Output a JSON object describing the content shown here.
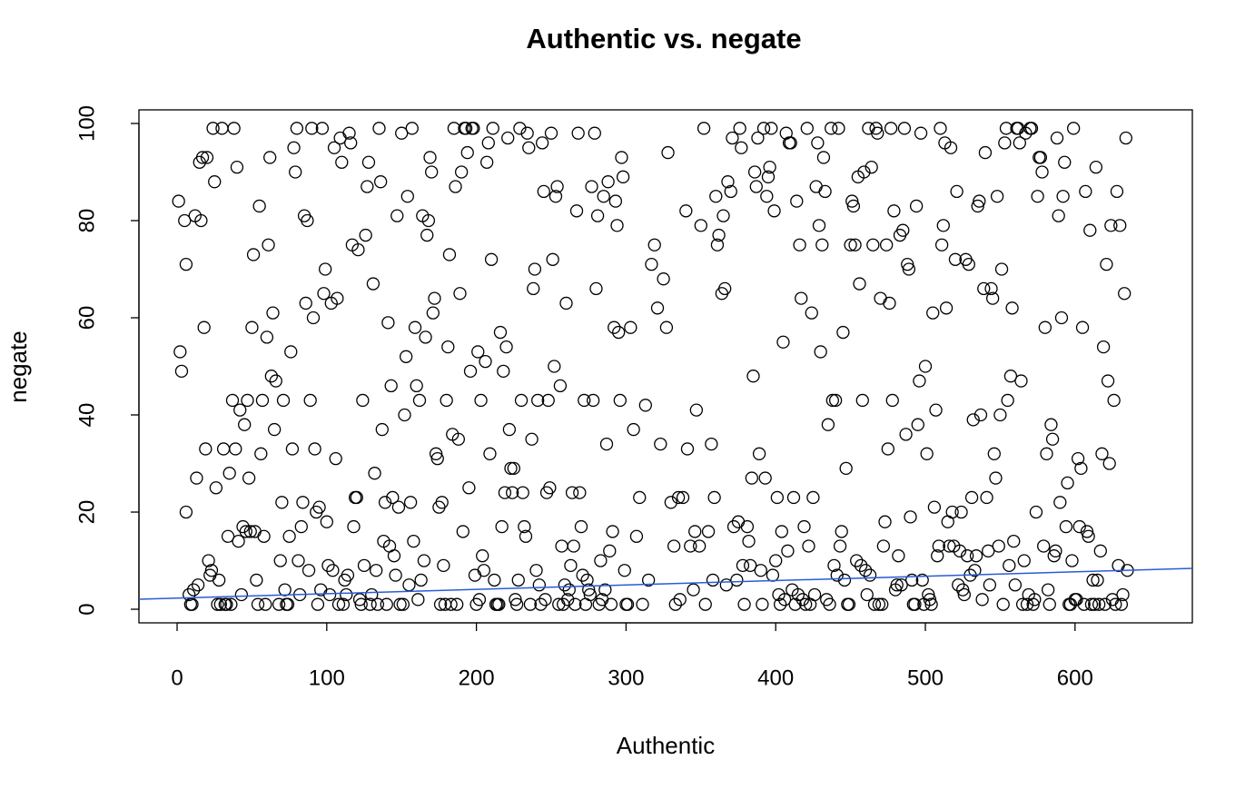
{
  "chart_data": {
    "type": "scatter",
    "title": "Authentic vs. negate",
    "x_label": "Authentic",
    "y_label": "negate",
    "xlim": [
      -25.5,
      678.4
    ],
    "ylim": [
      -2.8,
      102.8
    ],
    "xticks": [
      0,
      100,
      200,
      300,
      400,
      500,
      600
    ],
    "yticks": [
      0,
      20,
      40,
      60,
      80,
      100
    ],
    "color": "#000000",
    "x": [
      1,
      2,
      3,
      5,
      6,
      6,
      8,
      9,
      10,
      11,
      12,
      13,
      14,
      15,
      16,
      17,
      18,
      19,
      20,
      21,
      22,
      23,
      24,
      25,
      26,
      27,
      28,
      29,
      30,
      31,
      32,
      33,
      34,
      35,
      36,
      37,
      38,
      39,
      40,
      41,
      42,
      43,
      44,
      45,
      46,
      47,
      48,
      49,
      50,
      51,
      52,
      53,
      54,
      55,
      56,
      57,
      58,
      59,
      60,
      61,
      62,
      63,
      64,
      65,
      66,
      68,
      69,
      70,
      71,
      72,
      73,
      74,
      75,
      76,
      77,
      78,
      79,
      80,
      81,
      82,
      83,
      84,
      85,
      86,
      87,
      88,
      89,
      90,
      91,
      92,
      93,
      94,
      95,
      96,
      97,
      98,
      99,
      100,
      101,
      102,
      103,
      104,
      105,
      106,
      107,
      108,
      109,
      110,
      111,
      112,
      113,
      114,
      115,
      116,
      117,
      118,
      119,
      120,
      121,
      122,
      123,
      124,
      125,
      126,
      127,
      128,
      129,
      130,
      131,
      132,
      133,
      134,
      135,
      136,
      137,
      138,
      139,
      140,
      141,
      142,
      143,
      144,
      145,
      146,
      147,
      148,
      149,
      150,
      151,
      152,
      153,
      154,
      155,
      156,
      157,
      158,
      159,
      160,
      161,
      162,
      163,
      164,
      165,
      166,
      167,
      168,
      169,
      170,
      171,
      172,
      173,
      174,
      175,
      176,
      177,
      178,
      179,
      180,
      181,
      182,
      183,
      184,
      185,
      186,
      187,
      188,
      189,
      190,
      191,
      192,
      193,
      194,
      195,
      196,
      197,
      198,
      199,
      200,
      201,
      202,
      203,
      204,
      205,
      206,
      207,
      208,
      209,
      210,
      211,
      212,
      213,
      214,
      215,
      216,
      217,
      218,
      219,
      220,
      221,
      222,
      223,
      224,
      225,
      226,
      227,
      228,
      229,
      230,
      231,
      232,
      233,
      234,
      235,
      236,
      237,
      238,
      239,
      240,
      241,
      242,
      243,
      244,
      245,
      246,
      247,
      248,
      249,
      250,
      251,
      252,
      253,
      254,
      255,
      256,
      257,
      258,
      259,
      260,
      261,
      262,
      263,
      264,
      265,
      266,
      267,
      268,
      269,
      270,
      271,
      272,
      273,
      274,
      275,
      276,
      277,
      278,
      279,
      280,
      281,
      282,
      283,
      284,
      285,
      286,
      287,
      288,
      289,
      290,
      291,
      292,
      293,
      294,
      295,
      296,
      297,
      298,
      299,
      300,
      301,
      303,
      305,
      307,
      309,
      311,
      313,
      315,
      317,
      319,
      321,
      323,
      325,
      327,
      328,
      330,
      332,
      333,
      335,
      336,
      338,
      340,
      341,
      343,
      345,
      346,
      347,
      349,
      350,
      352,
      353,
      355,
      357,
      358,
      359,
      360,
      361,
      362,
      364,
      365,
      366,
      367,
      368,
      370,
      371,
      372,
      374,
      375,
      376,
      377,
      378,
      379,
      381,
      382,
      383,
      384,
      385,
      386,
      387,
      388,
      389,
      390,
      391,
      392,
      393,
      394,
      395,
      396,
      397,
      398,
      399,
      400,
      401,
      402,
      403,
      404,
      405,
      406,
      407,
      408,
      409,
      410,
      411,
      412,
      413,
      414,
      415,
      416,
      417,
      418,
      419,
      420,
      421,
      422,
      423,
      424,
      425,
      426,
      427,
      428,
      429,
      430,
      431,
      432,
      433,
      434,
      435,
      436,
      437,
      438,
      439,
      440,
      441,
      442,
      443,
      444,
      445,
      446,
      447,
      448,
      449,
      450,
      451,
      452,
      453,
      454,
      455,
      456,
      457,
      458,
      459,
      460,
      461,
      462,
      463,
      464,
      465,
      466,
      467,
      468,
      469,
      470,
      471,
      472,
      473,
      474,
      475,
      476,
      477,
      478,
      479,
      480,
      481,
      482,
      483,
      484,
      485,
      486,
      487,
      488,
      489,
      490,
      491,
      492,
      493,
      494,
      495,
      496,
      497,
      498,
      499,
      500,
      501,
      502,
      503,
      504,
      505,
      506,
      507,
      508,
      509,
      510,
      511,
      512,
      513,
      514,
      515,
      516,
      517,
      518,
      519,
      520,
      521,
      522,
      523,
      524,
      525,
      526,
      527,
      528,
      529,
      530,
      531,
      532,
      533,
      534,
      535,
      536,
      537,
      538,
      539,
      540,
      541,
      542,
      543,
      544,
      545,
      546,
      547,
      548,
      549,
      550,
      551,
      552,
      553,
      554,
      555,
      556,
      557,
      558,
      559,
      560,
      561,
      562,
      563,
      564,
      565,
      566,
      567,
      568,
      569,
      570,
      571,
      572,
      573,
      574,
      575,
      576,
      577,
      578,
      579,
      580,
      581,
      582,
      583,
      584,
      585,
      586,
      587,
      588,
      589,
      590,
      591,
      592,
      593,
      594,
      595,
      596,
      597,
      598,
      599,
      600,
      601,
      602,
      603,
      604,
      605,
      606,
      607,
      608,
      609,
      610,
      611,
      612,
      613,
      614,
      615,
      616,
      617,
      618,
      619,
      620,
      621,
      622,
      623,
      624,
      625,
      626,
      627,
      628,
      629,
      630,
      631,
      632,
      633,
      634,
      635
    ],
    "values": [
      84,
      53,
      49,
      80,
      71,
      20,
      3,
      1,
      1,
      4,
      81,
      27,
      5,
      92,
      80,
      93,
      58,
      33,
      93,
      10,
      7,
      8,
      99,
      88,
      25,
      1,
      6,
      1,
      99,
      33,
      1,
      1,
      15,
      28,
      1,
      43,
      99,
      33,
      91,
      14,
      41,
      3,
      17,
      38,
      16,
      43,
      27,
      16,
      58,
      73,
      16,
      6,
      1,
      83,
      32,
      43,
      15,
      1,
      56,
      75,
      93,
      48,
      61,
      37,
      47,
      1,
      10,
      22,
      43,
      4,
      1,
      1,
      15,
      53,
      33,
      95,
      90,
      99,
      10,
      3,
      17,
      22,
      81,
      63,
      80,
      8,
      43,
      99,
      60,
      33,
      20,
      1,
      21,
      4,
      99,
      65,
      70,
      18,
      9,
      3,
      63,
      8,
      95,
      31,
      64,
      1,
      97,
      92,
      1,
      6,
      3,
      7,
      98,
      96,
      75,
      17,
      23,
      23,
      74,
      2,
      1,
      43,
      9,
      77,
      87,
      92,
      1,
      3,
      67,
      28,
      8,
      1,
      99,
      88,
      37,
      14,
      22,
      1,
      59,
      13,
      46,
      23,
      11,
      7,
      81,
      21,
      1,
      98,
      1,
      40,
      52,
      85,
      5,
      22,
      99,
      14,
      58,
      46,
      2,
      43,
      6,
      81,
      10,
      56,
      77,
      80,
      93,
      90,
      61,
      64,
      32,
      31,
      21,
      1,
      22,
      9,
      1,
      43,
      54,
      73,
      1,
      36,
      99,
      87,
      1,
      35,
      65,
      90,
      16,
      99,
      99,
      94,
      25,
      49,
      99,
      99,
      7,
      1,
      53,
      2,
      43,
      11,
      8,
      51,
      92,
      96,
      32,
      72,
      99,
      6,
      1,
      1,
      1,
      57,
      17,
      49,
      24,
      54,
      97,
      37,
      29,
      24,
      29,
      2,
      1,
      6,
      99,
      43,
      24,
      17,
      15,
      98,
      95,
      1,
      35,
      66,
      70,
      8,
      43,
      5,
      1,
      96,
      86,
      2,
      24,
      43,
      25,
      98,
      72,
      50,
      85,
      87,
      1,
      46,
      13,
      1,
      5,
      63,
      2,
      4,
      9,
      24,
      13,
      1,
      82,
      98,
      24,
      17,
      7,
      43,
      1,
      6,
      4,
      3,
      87,
      43,
      98,
      66,
      81,
      1,
      10,
      2,
      85,
      4,
      34,
      88,
      12,
      1,
      16,
      58,
      84,
      79,
      57,
      43,
      93,
      89,
      8,
      1,
      1,
      58,
      37,
      15,
      23,
      1,
      42,
      6,
      71,
      75,
      62,
      34,
      68,
      58,
      94,
      22,
      13,
      1,
      23,
      2,
      23,
      82,
      33,
      13,
      4,
      16,
      41,
      13,
      79,
      99,
      1,
      16,
      34,
      6,
      23,
      85,
      75,
      77,
      65,
      81,
      66,
      5,
      88,
      86,
      97,
      17,
      6,
      18,
      99,
      95,
      9,
      1,
      17,
      14,
      9,
      27,
      48,
      90,
      87,
      97,
      32,
      8,
      1,
      99,
      27,
      85,
      89,
      91,
      99,
      7,
      82,
      10,
      23,
      3,
      1,
      16,
      55,
      2,
      98,
      12,
      96,
      96,
      4,
      23,
      1,
      84,
      3,
      75,
      64,
      2,
      17,
      1,
      99,
      13,
      1,
      61,
      23,
      3,
      87,
      96,
      79,
      53,
      75,
      93,
      86,
      2,
      38,
      1,
      99,
      43,
      9,
      43,
      7,
      99,
      13,
      16,
      57,
      6,
      29,
      1,
      1,
      75,
      84,
      83,
      75,
      10,
      89,
      67,
      9,
      43,
      90,
      8,
      3,
      99,
      7,
      91,
      75,
      1,
      99,
      98,
      1,
      64,
      1,
      13,
      18,
      75,
      33,
      63,
      99,
      43,
      82,
      4,
      5,
      11,
      77,
      5,
      78,
      99,
      36,
      71,
      70,
      19,
      6,
      1,
      1,
      83,
      38,
      47,
      98,
      6,
      1,
      50,
      32,
      3,
      2,
      1,
      61,
      21,
      41,
      11,
      13,
      99,
      75,
      79,
      96,
      62,
      18,
      13,
      95,
      20,
      13,
      72,
      86,
      5,
      12,
      20,
      4,
      3,
      72,
      11,
      71,
      7,
      23,
      39,
      8,
      11,
      83,
      84,
      40,
      2,
      66,
      94,
      23,
      12,
      5,
      66,
      64,
      32,
      27,
      85,
      13,
      40,
      70,
      1,
      96,
      99,
      43,
      9,
      48,
      62,
      14,
      5,
      99,
      99,
      96,
      47,
      1,
      10,
      98,
      1,
      3,
      99,
      99,
      1,
      2,
      20,
      85,
      93,
      93,
      90,
      13,
      58,
      32,
      4,
      1,
      38,
      35,
      11,
      12,
      97,
      81,
      22,
      60,
      85,
      92,
      17,
      26,
      1,
      1,
      10,
      99,
      2,
      2,
      31,
      17,
      29,
      58,
      1,
      86,
      16,
      15,
      78,
      1,
      6,
      1,
      91,
      6,
      1,
      12,
      32,
      54,
      1,
      71,
      47,
      30,
      79,
      2,
      43,
      1,
      86,
      9,
      79,
      1,
      3,
      65,
      97,
      8
    ],
    "trend_line": {
      "x": [
        -25.5,
        678.4
      ],
      "values": [
        2.06,
        8.41
      ],
      "color": "#2a5bd7"
    }
  }
}
